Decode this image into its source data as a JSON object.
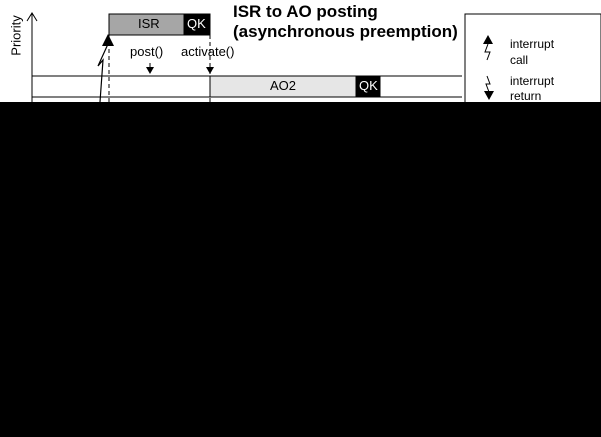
{
  "title": {
    "line1": "ISR to AO posting",
    "line2": "(asynchronous preemption)"
  },
  "axis": {
    "y_label": "Priority"
  },
  "isr_block": {
    "label": "ISR",
    "qk_label": "QK",
    "fill_color": "#a6a6a6"
  },
  "ao2_block": {
    "label": "AO2",
    "qk_label": "QK",
    "fill_color": "#e6e6e6"
  },
  "calls": {
    "post": "post()",
    "activate": "activate()"
  },
  "legend": {
    "interrupt_call_line1": "interrupt",
    "interrupt_call_line2": "call",
    "interrupt_return_line1": "interrupt",
    "interrupt_return_line2": "return"
  },
  "colors": {
    "qk_fill": "#000000",
    "background": "#ffffff",
    "obscured_region": "#000000"
  }
}
